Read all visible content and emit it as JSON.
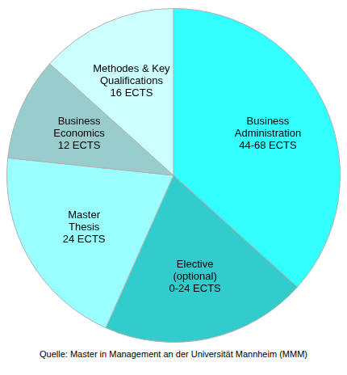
{
  "chart_data": {
    "type": "pie",
    "categories": [
      [
        "Business",
        "Administration"
      ],
      [
        "Elective",
        "(optional)"
      ],
      [
        "Master",
        "Thesis"
      ],
      [
        "Business",
        "Economics"
      ],
      [
        "Methodes & Key",
        "Qualifications"
      ]
    ],
    "values": [
      44,
      24,
      24,
      12,
      16
    ],
    "value_labels": [
      "44-68 ECTS",
      "0-24 ECTS",
      "24 ECTS",
      "12 ECTS",
      "16 ECTS"
    ],
    "colors": [
      "#33ffff",
      "#33cccc",
      "#99ffff",
      "#99cccc",
      "#ccffff"
    ],
    "data_labels": true,
    "source": "Quelle: Master in Management an der Universität Mannheim (MMM)"
  }
}
